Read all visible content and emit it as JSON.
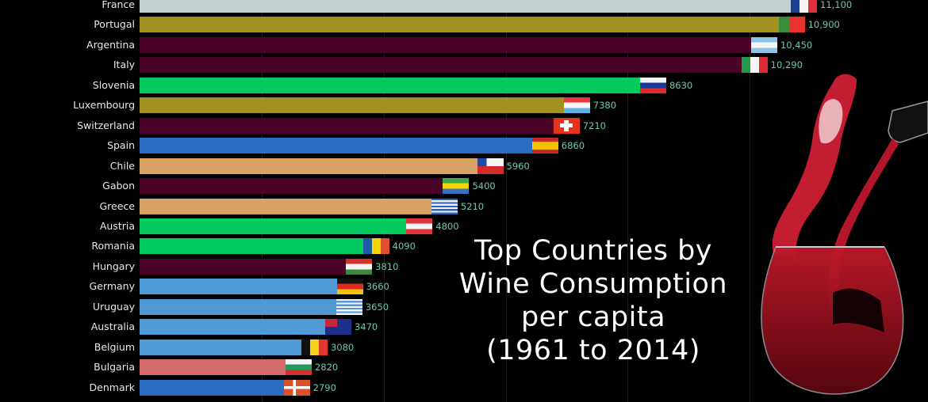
{
  "chart_data": {
    "type": "bar",
    "orientation": "horizontal",
    "title": "Top Countries by Wine Consumption per capita (1961 to 2014)",
    "title_lines": [
      "Top Countries by",
      "Wine Consumption",
      "per capita",
      "(1961 to 2014)"
    ],
    "xlabel": "",
    "ylabel": "",
    "xlim": [
      0,
      11500
    ],
    "grid": true,
    "gridlines": [
      2000,
      4000,
      6000,
      8000,
      10000
    ],
    "legend": "none",
    "categories": [
      "France",
      "Portugal",
      "Argentina",
      "Italy",
      "Slovenia",
      "Luxembourg",
      "Switzerland",
      "Spain",
      "Chile",
      "Gabon",
      "Greece",
      "Austria",
      "Romania",
      "Hungary",
      "Germany",
      "Uruguay",
      "Australia",
      "Belgium",
      "Bulgaria",
      "Denmark"
    ],
    "values": [
      11100,
      10900,
      10450,
      10290,
      8630,
      7380,
      7210,
      6860,
      5960,
      5400,
      5210,
      4800,
      4090,
      3810,
      3660,
      3650,
      3470,
      3080,
      2820,
      2790
    ],
    "value_labels": [
      "11,100",
      "10,900",
      "10,450",
      "10,290",
      "8630",
      "7380",
      "7210",
      "6860",
      "5960",
      "5400",
      "5210",
      "4800",
      "4090",
      "3810",
      "3660",
      "3650",
      "3470",
      "3080",
      "2820",
      "2790"
    ],
    "colors": [
      "#c4cfcf",
      "#a09121",
      "#4a0326",
      "#4a0326",
      "#04cb5e",
      "#a09121",
      "#4a0326",
      "#2a6cc0",
      "#d7a264",
      "#4a0326",
      "#d7a264",
      "#04cb5e",
      "#04cb5e",
      "#4a0326",
      "#4f9ad4",
      "#4f9ad4",
      "#4f9ad4",
      "#4f9ad4",
      "#d56b6a",
      "#2a6cc0"
    ],
    "flags": [
      "france-flag",
      "portugal-flag",
      "argentina-flag",
      "italy-flag",
      "slovenia-flag",
      "luxembourg-flag",
      "switzerland-flag",
      "spain-flag",
      "chile-flag",
      "gabon-flag",
      "greece-flag",
      "austria-flag",
      "romania-flag",
      "hungary-flag",
      "germany-flag",
      "uruguay-flag",
      "australia-flag",
      "belgium-flag",
      "bulgaria-flag",
      "denmark-flag"
    ]
  },
  "theme": {
    "background": "#000000",
    "label_color": "#e8e8e8",
    "value_color": "#6fc9a5",
    "title_color": "#ffffff"
  },
  "decoration": {
    "image": "red-wine-pouring-into-glass"
  }
}
